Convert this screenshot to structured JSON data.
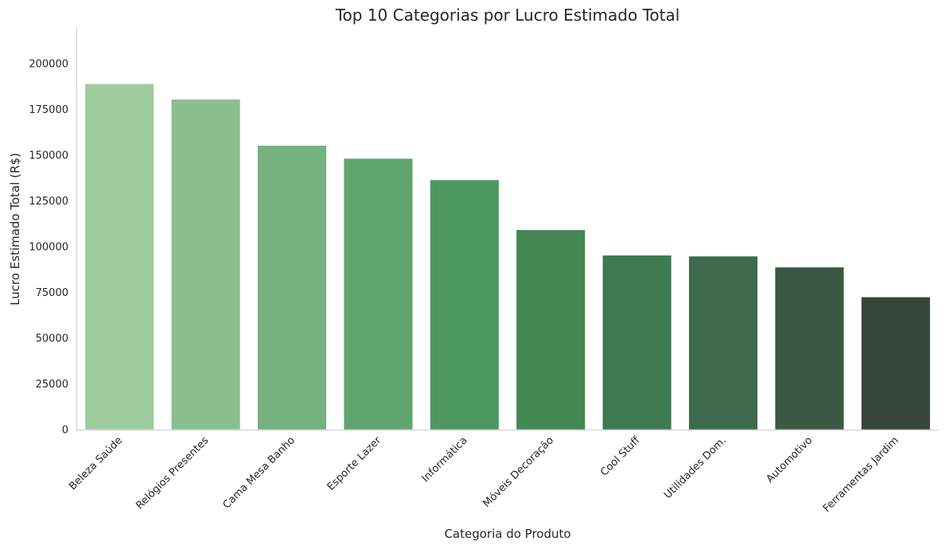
{
  "chart_data": {
    "type": "bar",
    "title": "Top 10 Categorias por Lucro Estimado Total",
    "xlabel": "Categoria do Produto",
    "ylabel": "Lucro Estimado Total (R$)",
    "categories": [
      "Beleza Saúde",
      "Relógios Presentes",
      "Cama Mesa Banho",
      "Esporte Lazer",
      "Informática",
      "Móveis Decoração",
      "Cool Stuff",
      "Utilidades Dom.",
      "Automotivo",
      "Ferramentas Jardim"
    ],
    "values": [
      189000,
      180500,
      155300,
      148200,
      136500,
      109200,
      95300,
      94800,
      88800,
      72500
    ],
    "colors": [
      "#9fcc9d",
      "#89be8e",
      "#75b27f",
      "#5fa56f",
      "#4d9861",
      "#438853",
      "#3d7a50",
      "#3c6a4b",
      "#3b5843",
      "#36463a"
    ],
    "ylim": [
      0,
      220000
    ],
    "yticks": [
      0,
      25000,
      50000,
      75000,
      100000,
      125000,
      150000,
      175000,
      200000
    ],
    "grid": false,
    "legend": "none"
  }
}
